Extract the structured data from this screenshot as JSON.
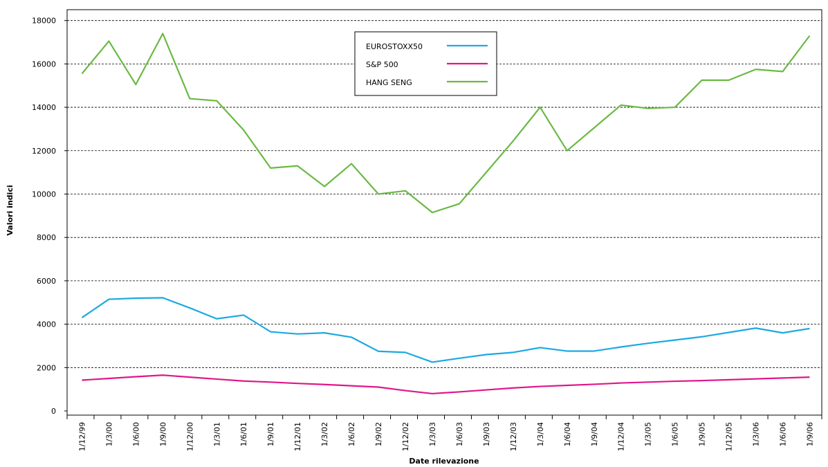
{
  "chart_data": {
    "type": "line",
    "x_label": "Date rilevazione",
    "y_label": "Valori indici",
    "categories": [
      "1/12/99",
      "1/3/00",
      "1/6/00",
      "1/9/00",
      "1/12/00",
      "1/3/01",
      "1/6/01",
      "1/9/01",
      "1/12/01",
      "1/3/02",
      "1/6/02",
      "1/9/02",
      "1/12/02",
      "1/3/03",
      "1/6/03",
      "1/9/03",
      "1/12/03",
      "1/3/04",
      "1/6/04",
      "1/9/04",
      "1/12/04",
      "1/3/05",
      "1/6/05",
      "1/9/05",
      "1/12/05",
      "1/3/06",
      "1/6/06",
      "1/9/06"
    ],
    "series": [
      {
        "name": "EUROSTOXX50",
        "color": "#1ba9e1",
        "values": [
          4300,
          5150,
          5200,
          5220,
          4750,
          4250,
          4420,
          3650,
          3550,
          3600,
          3400,
          2750,
          2700,
          2250,
          2430,
          2600,
          2700,
          2920,
          2760,
          2760,
          2950,
          3120,
          3270,
          3420,
          3620,
          3820,
          3600,
          3800
        ]
      },
      {
        "name": "S&P 500",
        "color": "#e0168a",
        "values": [
          1420,
          1500,
          1580,
          1650,
          1560,
          1470,
          1380,
          1330,
          1270,
          1220,
          1160,
          1100,
          940,
          800,
          880,
          970,
          1060,
          1130,
          1180,
          1230,
          1290,
          1330,
          1370,
          1400,
          1440,
          1480,
          1520,
          1560
        ]
      },
      {
        "name": "HANG SENG",
        "color": "#6ab942",
        "values": [
          15550,
          17050,
          15050,
          17400,
          14400,
          14300,
          12950,
          11200,
          11300,
          10350,
          11400,
          10000,
          10150,
          9150,
          9550,
          11000,
          12450,
          14000,
          12000,
          13050,
          14100,
          13950,
          14000,
          15250,
          15250,
          15750,
          15650,
          17300
        ]
      }
    ],
    "ylim": [
      0,
      18500
    ],
    "yticks": [
      0,
      2000,
      4000,
      6000,
      8000,
      10000,
      12000,
      14000,
      16000,
      18000
    ],
    "grid": true
  }
}
